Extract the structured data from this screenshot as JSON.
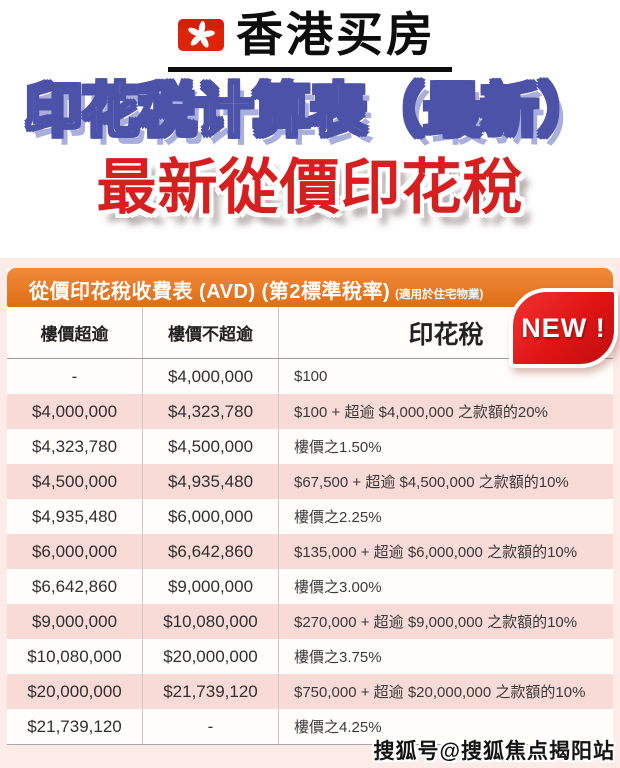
{
  "header": {
    "brand": "香港买房",
    "flag_icon": "hong-kong-flag-icon",
    "title_blue": "印花税计算表（最新）",
    "title_red": "最新從價印花稅"
  },
  "table_card": {
    "bar_title": "從價印花稅收費表 (AVD) (第2標準稅率)",
    "bar_subtitle": "(適用於住宅物業)",
    "new_badge": "NEW !",
    "columns": [
      "樓價超逾",
      "樓價不超逾",
      "印花稅"
    ],
    "rows": [
      [
        "-",
        "$4,000,000",
        "$100"
      ],
      [
        "$4,000,000",
        "$4,323,780",
        "$100 + 超逾 $4,000,000 之款額的20%"
      ],
      [
        "$4,323,780",
        "$4,500,000",
        "樓價之1.50%"
      ],
      [
        "$4,500,000",
        "$4,935,480",
        "$67,500 + 超逾 $4,500,000 之款額的10%"
      ],
      [
        "$4,935,480",
        "$6,000,000",
        "樓價之2.25%"
      ],
      [
        "$6,000,000",
        "$6,642,860",
        "$135,000 + 超逾 $6,000,000 之款額的10%"
      ],
      [
        "$6,642,860",
        "$9,000,000",
        "樓價之3.00%"
      ],
      [
        "$9,000,000",
        "$10,080,000",
        "$270,000 + 超逾 $9,000,000 之款額的10%"
      ],
      [
        "$10,080,000",
        "$20,000,000",
        "樓價之3.75%"
      ],
      [
        "$20,000,000",
        "$21,739,120",
        "$750,000 + 超逾 $20,000,000 之款額的10%"
      ],
      [
        "$21,739,120",
        "-",
        "樓價之4.25%"
      ]
    ]
  },
  "chart_data": {
    "type": "table",
    "title": "從價印花稅收費表 (AVD) (第2標準稅率) (適用於住宅物業)",
    "columns": [
      "樓價超逾",
      "樓價不超逾",
      "印花稅"
    ],
    "rows": [
      [
        "-",
        "$4,000,000",
        "$100"
      ],
      [
        "$4,000,000",
        "$4,323,780",
        "$100 + 超逾 $4,000,000 之款額的20%"
      ],
      [
        "$4,323,780",
        "$4,500,000",
        "樓價之1.50%"
      ],
      [
        "$4,500,000",
        "$4,935,480",
        "$67,500 + 超逾 $4,500,000 之款額的10%"
      ],
      [
        "$4,935,480",
        "$6,000,000",
        "樓價之2.25%"
      ],
      [
        "$6,000,000",
        "$6,642,860",
        "$135,000 + 超逾 $6,000,000 之款額的10%"
      ],
      [
        "$6,642,860",
        "$9,000,000",
        "樓價之3.00%"
      ],
      [
        "$9,000,000",
        "$10,080,000",
        "$270,000 + 超逾 $9,000,000 之款額的10%"
      ],
      [
        "$10,080,000",
        "$20,000,000",
        "樓價之3.75%"
      ],
      [
        "$20,000,000",
        "$21,739,120",
        "$750,000 + 超逾 $20,000,000 之款額的10%"
      ],
      [
        "$21,739,120",
        "-",
        "樓價之4.25%"
      ]
    ]
  },
  "watermark": "搜狐号@搜狐焦点揭阳站",
  "colors": {
    "accent_orange": "#e8761f",
    "row_pink": "#f8dad6",
    "section_pink": "#fcebe7",
    "badge_red": "#de1414",
    "title_blue_outline": "#4c52a8",
    "title_blue_shadow": "#a9afdc",
    "title_red": "#d62020",
    "flag_red": "#de2408"
  }
}
